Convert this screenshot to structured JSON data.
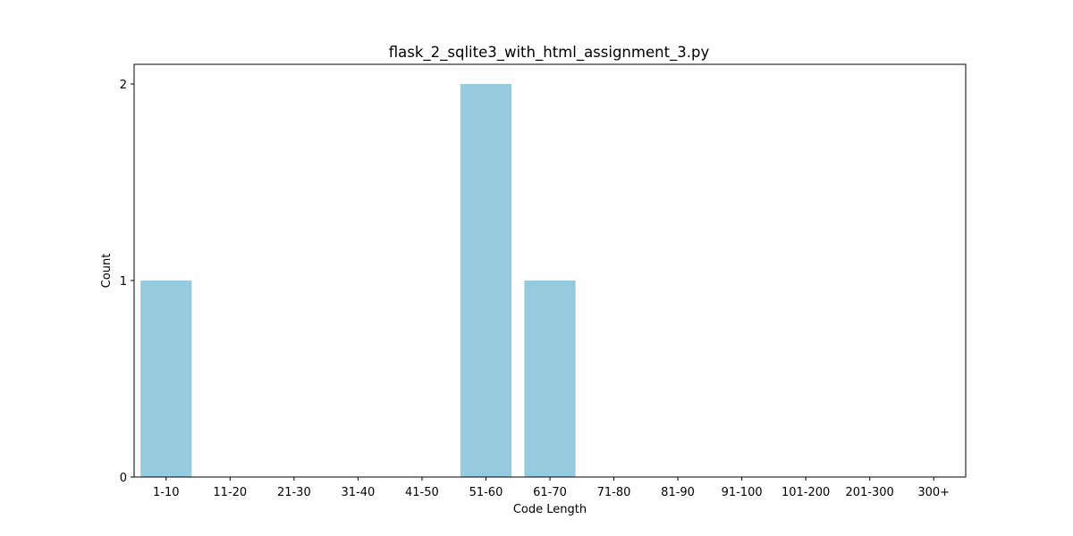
{
  "chart_data": {
    "type": "bar",
    "title": "flask_2_sqlite3_with_html_assignment_3.py",
    "xlabel": "Code Length",
    "ylabel": "Count",
    "categories": [
      "1-10",
      "11-20",
      "21-30",
      "31-40",
      "41-50",
      "51-60",
      "61-70",
      "71-80",
      "81-90",
      "91-100",
      "101-200",
      "201-300",
      "300+"
    ],
    "values": [
      1,
      0,
      0,
      0,
      0,
      2,
      1,
      0,
      0,
      0,
      0,
      0,
      0
    ],
    "ylim": [
      0,
      2.1
    ],
    "yticks": [
      0,
      1,
      2
    ],
    "bar_color": "#96cbdf",
    "grid": false,
    "legend": "none"
  }
}
